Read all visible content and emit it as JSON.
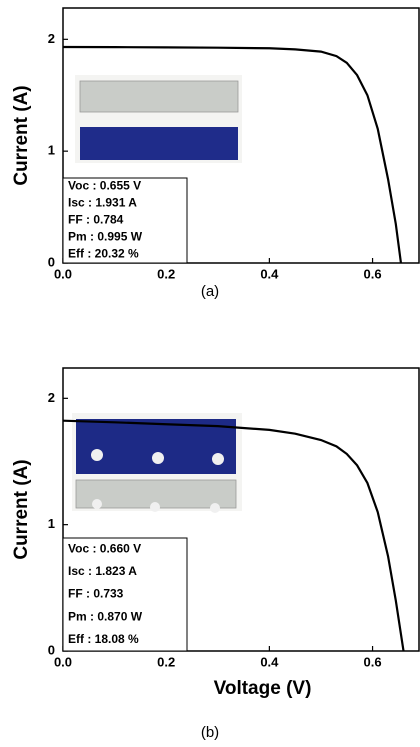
{
  "chart_data": [
    {
      "type": "line",
      "caption": "(a)",
      "ylabel": "Current (A)",
      "x": [
        0,
        0.1,
        0.2,
        0.3,
        0.4,
        0.45,
        0.5,
        0.53,
        0.55,
        0.57,
        0.59,
        0.61,
        0.63,
        0.645,
        0.655
      ],
      "values": [
        1.931,
        1.93,
        1.928,
        1.925,
        1.92,
        1.91,
        1.89,
        1.85,
        1.79,
        1.68,
        1.5,
        1.2,
        0.75,
        0.35,
        0
      ],
      "color": "#000000",
      "xlim": [
        0,
        0.69
      ],
      "xticks": [
        {
          "value": 0,
          "label": "0.0"
        },
        0.2,
        0.4,
        0.6
      ],
      "ylim": [
        0,
        2.28
      ],
      "yticks": [
        0,
        1,
        2
      ],
      "annotations": [
        "Voc : 0.655 V",
        "Isc : 1.931 A",
        "FF : 0.784",
        "Pm : 0.995 W",
        "Eff : 20.32 %"
      ]
    },
    {
      "type": "line",
      "caption": "(b)",
      "ylabel": "Current (A)",
      "xlabel": "Voltage (V)",
      "x": [
        0,
        0.1,
        0.2,
        0.3,
        0.4,
        0.45,
        0.5,
        0.53,
        0.55,
        0.57,
        0.59,
        0.61,
        0.63,
        0.645,
        0.66
      ],
      "values": [
        1.823,
        1.81,
        1.795,
        1.78,
        1.75,
        1.72,
        1.67,
        1.62,
        1.56,
        1.47,
        1.33,
        1.1,
        0.75,
        0.4,
        0
      ],
      "color": "#000000",
      "xlim": [
        0,
        0.69
      ],
      "xticks": [
        {
          "value": 0,
          "label": "0.0"
        },
        0.2,
        0.4,
        0.6
      ],
      "ylim": [
        0,
        2.24
      ],
      "yticks": [
        0,
        1,
        2
      ],
      "annotations": [
        "Voc : 0.660 V",
        "Isc : 1.823 A",
        "FF : 0.733",
        "Pm : 0.870 W",
        "Eff : 18.08 %"
      ]
    }
  ]
}
